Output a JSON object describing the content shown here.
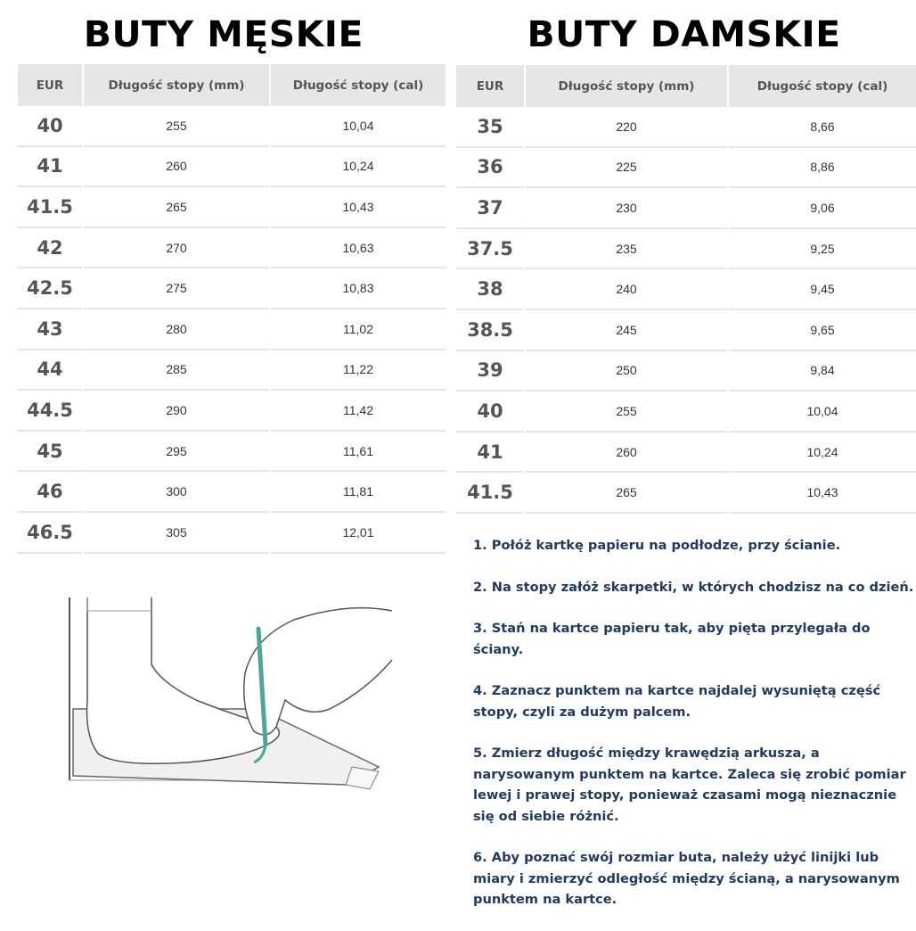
{
  "men": {
    "title": "BUTY MĘSKIE",
    "headers": [
      "EUR",
      "Długość stopy (mm)",
      "Długość stopy (cal)"
    ],
    "rows": [
      [
        "40",
        "255",
        "10,04"
      ],
      [
        "41",
        "260",
        "10,24"
      ],
      [
        "41.5",
        "265",
        "10,43"
      ],
      [
        "42",
        "270",
        "10,63"
      ],
      [
        "42.5",
        "275",
        "10,83"
      ],
      [
        "43",
        "280",
        "11,02"
      ],
      [
        "44",
        "285",
        "11,22"
      ],
      [
        "44.5",
        "290",
        "11,42"
      ],
      [
        "45",
        "295",
        "11,61"
      ],
      [
        "46",
        "300",
        "11,81"
      ],
      [
        "46.5",
        "305",
        "12,01"
      ]
    ]
  },
  "women": {
    "title": "BUTY DAMSKIE",
    "headers": [
      "EUR",
      "Długość stopy (mm)",
      "Długość stopy (cal)"
    ],
    "rows": [
      [
        "35",
        "220",
        "8,66"
      ],
      [
        "36",
        "225",
        "8,86"
      ],
      [
        "37",
        "230",
        "9,06"
      ],
      [
        "37.5",
        "235",
        "9,25"
      ],
      [
        "38",
        "240",
        "9,45"
      ],
      [
        "38.5",
        "245",
        "9,65"
      ],
      [
        "39",
        "250",
        "9,84"
      ],
      [
        "40",
        "255",
        "10,04"
      ],
      [
        "41",
        "260",
        "10,24"
      ],
      [
        "41.5",
        "265",
        "10,43"
      ]
    ]
  },
  "instructions": [
    "1. Połóż kartkę papieru na podłodze, przy ścianie.",
    "2. Na stopy załóż skarpetki, w których chodzisz na co dzień.",
    "3. Stań na kartce papieru tak, aby pięta przylegała do ściany.",
    "4. Zaznacz punktem na kartce najdalej wysuniętą część stopy, czyli za dużym palcem.",
    "5. Zmierz długość między krawędzią arkusza, a narysowanym punktem na kartce. Zaleca się zrobić pomiar lewej i prawej stopy, ponieważ czasami mogą nieznacznie się od siebie różnić.",
    "6. Aby poznać swój rozmiar buta, należy użyć linijki lub miary i zmierzyć odległość między ścianą, a narysowanym punktem na kartce."
  ],
  "colors": {
    "instruction_text": "#1f3a64",
    "header_bg": "#e6e6e6",
    "pen_accent": "#4aa89a"
  }
}
